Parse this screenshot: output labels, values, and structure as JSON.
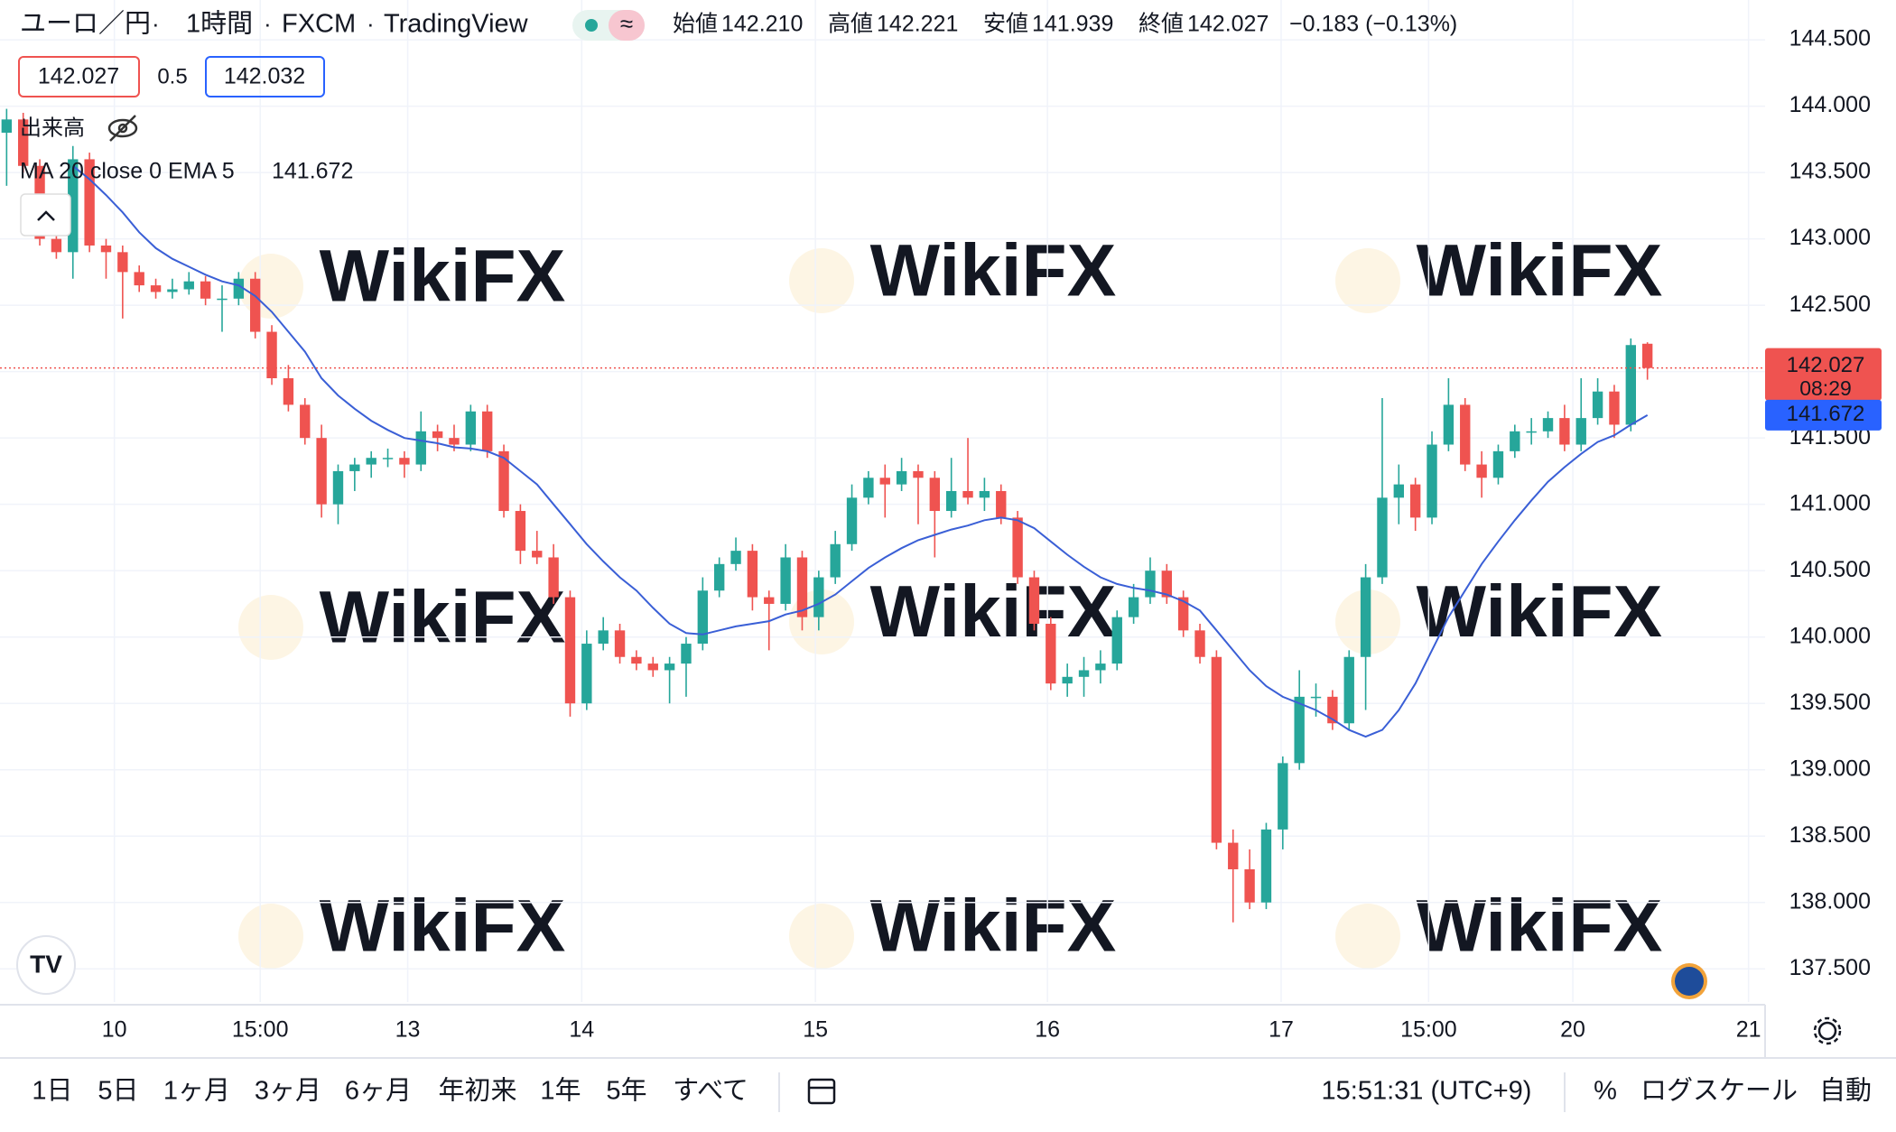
{
  "header": {
    "symbol": "ユーロ／円",
    "interval": "1時間",
    "source": "FXCM",
    "platform": "TradingView",
    "ohlc": [
      {
        "label": "始値",
        "value": "142.210"
      },
      {
        "label": "高値",
        "value": "142.221"
      },
      {
        "label": "安値",
        "value": "141.939"
      },
      {
        "label": "終値",
        "value": "142.027"
      }
    ],
    "change": "−0.183 (−0.13%)",
    "bid": "142.027",
    "spread": "0.5",
    "ask": "142.032",
    "volume": "出来高",
    "indicator": "MA 20 close 0 EMA 5",
    "indicator_value": "141.672"
  },
  "chart_data": {
    "type": "candlestick",
    "watermark": "WikiFX",
    "up_color": "#26a69a",
    "down_color": "#ef5350",
    "grid": true,
    "candles": [
      [
        143.8,
        143.98,
        143.4,
        143.9
      ],
      [
        143.9,
        143.95,
        143.5,
        143.55
      ],
      [
        143.55,
        143.6,
        142.95,
        143.0
      ],
      [
        143.0,
        143.1,
        142.85,
        142.9
      ],
      [
        142.9,
        143.7,
        142.7,
        143.6
      ],
      [
        143.6,
        143.65,
        142.9,
        142.95
      ],
      [
        142.95,
        143.0,
        142.7,
        142.9
      ],
      [
        142.9,
        142.95,
        142.4,
        142.75
      ],
      [
        142.75,
        142.8,
        142.6,
        142.65
      ],
      [
        142.65,
        142.7,
        142.55,
        142.6
      ],
      [
        142.6,
        142.7,
        142.55,
        142.62
      ],
      [
        142.62,
        142.75,
        142.58,
        142.68
      ],
      [
        142.68,
        142.72,
        142.5,
        142.55
      ],
      [
        142.55,
        142.65,
        142.3,
        142.55
      ],
      [
        142.55,
        142.75,
        142.5,
        142.7
      ],
      [
        142.7,
        142.75,
        142.25,
        142.3
      ],
      [
        142.3,
        142.35,
        141.9,
        141.95
      ],
      [
        141.95,
        142.05,
        141.7,
        141.75
      ],
      [
        141.75,
        141.8,
        141.45,
        141.5
      ],
      [
        141.5,
        141.6,
        140.9,
        141.0
      ],
      [
        141.0,
        141.3,
        140.85,
        141.25
      ],
      [
        141.25,
        141.35,
        141.1,
        141.3
      ],
      [
        141.3,
        141.4,
        141.2,
        141.35
      ],
      [
        141.35,
        141.42,
        141.28,
        141.35
      ],
      [
        141.35,
        141.4,
        141.2,
        141.3
      ],
      [
        141.3,
        141.7,
        141.25,
        141.55
      ],
      [
        141.55,
        141.6,
        141.4,
        141.5
      ],
      [
        141.5,
        141.6,
        141.4,
        141.45
      ],
      [
        141.45,
        141.75,
        141.4,
        141.7
      ],
      [
        141.7,
        141.75,
        141.35,
        141.4
      ],
      [
        141.4,
        141.45,
        140.9,
        140.95
      ],
      [
        140.95,
        141.0,
        140.55,
        140.65
      ],
      [
        140.65,
        140.8,
        140.55,
        140.6
      ],
      [
        140.6,
        140.7,
        140.25,
        140.3
      ],
      [
        140.3,
        140.35,
        139.4,
        139.5
      ],
      [
        139.5,
        140.05,
        139.45,
        139.95
      ],
      [
        139.95,
        140.15,
        139.9,
        140.05
      ],
      [
        140.05,
        140.1,
        139.8,
        139.85
      ],
      [
        139.85,
        139.9,
        139.75,
        139.8
      ],
      [
        139.8,
        139.85,
        139.7,
        139.75
      ],
      [
        139.75,
        139.85,
        139.5,
        139.8
      ],
      [
        139.8,
        140.0,
        139.55,
        139.95
      ],
      [
        139.95,
        140.45,
        139.9,
        140.35
      ],
      [
        140.35,
        140.6,
        140.3,
        140.55
      ],
      [
        140.55,
        140.75,
        140.5,
        140.65
      ],
      [
        140.65,
        140.7,
        140.2,
        140.3
      ],
      [
        140.3,
        140.35,
        139.9,
        140.25
      ],
      [
        140.25,
        140.7,
        140.2,
        140.6
      ],
      [
        140.6,
        140.65,
        140.05,
        140.15
      ],
      [
        140.15,
        140.5,
        140.05,
        140.45
      ],
      [
        140.45,
        140.8,
        140.4,
        140.7
      ],
      [
        140.7,
        141.15,
        140.65,
        141.05
      ],
      [
        141.05,
        141.25,
        141.0,
        141.2
      ],
      [
        141.2,
        141.3,
        140.9,
        141.15
      ],
      [
        141.15,
        141.35,
        141.1,
        141.25
      ],
      [
        141.25,
        141.3,
        140.85,
        141.2
      ],
      [
        141.2,
        141.25,
        140.6,
        140.95
      ],
      [
        140.95,
        141.35,
        140.9,
        141.1
      ],
      [
        141.1,
        141.5,
        141.0,
        141.05
      ],
      [
        141.05,
        141.2,
        140.95,
        141.1
      ],
      [
        141.1,
        141.15,
        140.85,
        140.9
      ],
      [
        140.9,
        140.95,
        140.4,
        140.45
      ],
      [
        140.45,
        140.5,
        140.05,
        140.1
      ],
      [
        140.1,
        140.15,
        139.6,
        139.65
      ],
      [
        139.65,
        139.8,
        139.55,
        139.7
      ],
      [
        139.7,
        139.85,
        139.55,
        139.75
      ],
      [
        139.75,
        139.9,
        139.65,
        139.8
      ],
      [
        139.8,
        140.2,
        139.75,
        140.15
      ],
      [
        140.15,
        140.4,
        140.1,
        140.3
      ],
      [
        140.3,
        140.6,
        140.25,
        140.5
      ],
      [
        140.5,
        140.55,
        140.25,
        140.3
      ],
      [
        140.3,
        140.35,
        140.0,
        140.05
      ],
      [
        140.05,
        140.1,
        139.8,
        139.85
      ],
      [
        139.85,
        139.9,
        138.4,
        138.45
      ],
      [
        138.45,
        138.55,
        137.85,
        138.25
      ],
      [
        138.25,
        138.4,
        137.95,
        138.0
      ],
      [
        138.0,
        138.6,
        137.95,
        138.55
      ],
      [
        138.55,
        139.1,
        138.4,
        139.05
      ],
      [
        139.05,
        139.75,
        139.0,
        139.55
      ],
      [
        139.55,
        139.65,
        139.4,
        139.55
      ],
      [
        139.55,
        139.6,
        139.3,
        139.35
      ],
      [
        139.35,
        139.9,
        139.3,
        139.85
      ],
      [
        139.85,
        140.55,
        139.45,
        140.45
      ],
      [
        140.45,
        141.8,
        140.4,
        141.05
      ],
      [
        141.05,
        141.3,
        140.85,
        141.15
      ],
      [
        141.15,
        141.2,
        140.8,
        140.9
      ],
      [
        140.9,
        141.55,
        140.85,
        141.45
      ],
      [
        141.45,
        141.95,
        141.4,
        141.75
      ],
      [
        141.75,
        141.8,
        141.25,
        141.3
      ],
      [
        141.3,
        141.4,
        141.05,
        141.2
      ],
      [
        141.2,
        141.45,
        141.15,
        141.4
      ],
      [
        141.4,
        141.6,
        141.35,
        141.55
      ],
      [
        141.55,
        141.65,
        141.45,
        141.55
      ],
      [
        141.55,
        141.7,
        141.5,
        141.65
      ],
      [
        141.65,
        141.75,
        141.4,
        141.45
      ],
      [
        141.45,
        141.95,
        141.4,
        141.65
      ],
      [
        141.65,
        141.95,
        141.6,
        141.85
      ],
      [
        141.85,
        141.9,
        141.5,
        141.6
      ],
      [
        141.6,
        142.25,
        141.55,
        142.2
      ],
      [
        142.21,
        142.221,
        141.939,
        142.027
      ]
    ],
    "series": [
      {
        "name": "EMA 5",
        "color": "#3a5fd6",
        "values": [
          null,
          null,
          null,
          null,
          143.55,
          143.45,
          143.33,
          143.2,
          143.05,
          142.93,
          142.85,
          142.79,
          142.73,
          142.68,
          142.65,
          142.57,
          142.45,
          142.3,
          142.15,
          141.95,
          141.82,
          141.72,
          141.63,
          141.56,
          141.5,
          141.48,
          141.46,
          141.43,
          141.42,
          141.4,
          141.35,
          141.25,
          141.15,
          141.0,
          140.85,
          140.7,
          140.57,
          140.45,
          140.35,
          140.22,
          140.1,
          140.03,
          140.02,
          140.05,
          140.08,
          140.1,
          140.12,
          140.17,
          140.2,
          140.25,
          140.32,
          140.42,
          140.52,
          140.6,
          140.67,
          140.73,
          140.77,
          140.81,
          140.84,
          140.88,
          140.9,
          140.88,
          140.82,
          140.72,
          140.62,
          140.53,
          140.45,
          140.4,
          140.37,
          140.35,
          140.32,
          140.27,
          140.2,
          140.05,
          139.9,
          139.75,
          139.63,
          139.55,
          139.5,
          139.45,
          139.38,
          139.3,
          139.25,
          139.3,
          139.45,
          139.65,
          139.9,
          140.15,
          140.35,
          140.55,
          140.72,
          140.88,
          141.03,
          141.17,
          141.28,
          141.38,
          141.47,
          141.52,
          141.6,
          141.672
        ]
      }
    ],
    "last_price": {
      "value": 142.027,
      "label": "142.027",
      "countdown": "08:29"
    },
    "ema_last": {
      "value": 141.672,
      "label": "141.672"
    },
    "xlim": [
      -0.4,
      106.1
    ],
    "xticks": [
      {
        "value": 6.5,
        "label": "10"
      },
      {
        "value": 15.3,
        "label": "15:00"
      },
      {
        "value": 24.2,
        "label": "13"
      },
      {
        "value": 34.7,
        "label": "14"
      },
      {
        "value": 48.8,
        "label": "15"
      },
      {
        "value": 62.8,
        "label": "16"
      },
      {
        "value": 76.9,
        "label": "17"
      },
      {
        "value": 85.8,
        "label": "15:00"
      },
      {
        "value": 94.5,
        "label": "20"
      },
      {
        "value": 105.1,
        "label": "21"
      }
    ],
    "ylim": [
      137.25,
      144.8
    ],
    "yticks": [
      {
        "value": 137.5,
        "label": "137.500"
      },
      {
        "value": 138,
        "label": "138.000"
      },
      {
        "value": 138.5,
        "label": "138.500"
      },
      {
        "value": 139,
        "label": "139.000"
      },
      {
        "value": 139.5,
        "label": "139.500"
      },
      {
        "value": 140,
        "label": "140.000"
      },
      {
        "value": 140.5,
        "label": "140.500"
      },
      {
        "value": 141,
        "label": "141.000"
      },
      {
        "value": 141.5,
        "label": "141.500"
      },
      {
        "value": 142,
        "label": "142.000"
      },
      {
        "value": 142.5,
        "label": "142.500"
      },
      {
        "value": 143,
        "label": "143.000"
      },
      {
        "value": 143.5,
        "label": "143.500"
      },
      {
        "value": 144,
        "label": "144.000"
      },
      {
        "value": 144.5,
        "label": "144.500"
      }
    ]
  },
  "toolbar": {
    "ranges": [
      "1日",
      "5日",
      "1ヶ月",
      "3ヶ月",
      "6ヶ月",
      "年初来",
      "1年",
      "5年",
      "すべて"
    ],
    "time": "15:51:31 (UTC+9)",
    "percent": "%",
    "log": "ログスケール",
    "auto": "自動"
  }
}
